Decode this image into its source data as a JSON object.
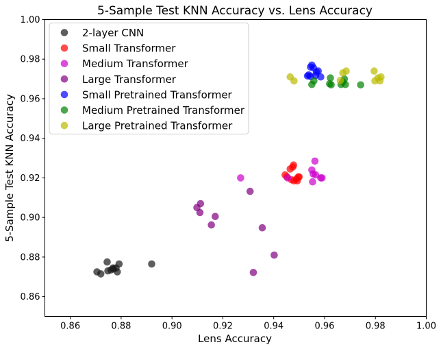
{
  "chart_data": {
    "type": "scatter",
    "title": "5-Sample Test KNN Accuracy vs. Lens Accuracy",
    "xlabel": "Lens Accuracy",
    "ylabel": "5-Sample Test KNN Accuracy",
    "xlim": [
      0.85,
      1.0
    ],
    "ylim": [
      0.85,
      1.0
    ],
    "xticks": [
      "0.86",
      "0.88",
      "0.90",
      "0.92",
      "0.94",
      "0.96",
      "0.98",
      "1.00"
    ],
    "yticks": [
      "0.86",
      "0.88",
      "0.90",
      "0.92",
      "0.94",
      "0.96",
      "0.98",
      "1.00"
    ],
    "grid": false,
    "legend_position": "top-left",
    "series": [
      {
        "name": "2-layer CNN",
        "color": "#1a1a1a",
        "points": [
          [
            0.8705,
            0.8725
          ],
          [
            0.872,
            0.8715
          ],
          [
            0.8745,
            0.8775
          ],
          [
            0.8748,
            0.873
          ],
          [
            0.876,
            0.8735
          ],
          [
            0.8768,
            0.8745
          ],
          [
            0.877,
            0.874
          ],
          [
            0.878,
            0.8745
          ],
          [
            0.8785,
            0.8725
          ],
          [
            0.8792,
            0.8765
          ],
          [
            0.892,
            0.8765
          ]
        ]
      },
      {
        "name": "Small Transformer",
        "color": "#ff0000",
        "points": [
          [
            0.9445,
            0.9215
          ],
          [
            0.9452,
            0.9205
          ],
          [
            0.9465,
            0.9245
          ],
          [
            0.947,
            0.919
          ],
          [
            0.9475,
            0.9255
          ],
          [
            0.9478,
            0.9265
          ],
          [
            0.948,
            0.9185
          ],
          [
            0.949,
            0.9195
          ],
          [
            0.9493,
            0.9185
          ],
          [
            0.9497,
            0.9205
          ],
          [
            0.95,
            0.9205
          ]
        ]
      },
      {
        "name": "Medium Transformer",
        "color": "#cc00cc",
        "points": [
          [
            0.927,
            0.92
          ],
          [
            0.9455,
            0.92
          ],
          [
            0.955,
            0.924
          ],
          [
            0.9553,
            0.918
          ],
          [
            0.9555,
            0.922
          ],
          [
            0.9562,
            0.9285
          ],
          [
            0.9565,
            0.9215
          ],
          [
            0.9585,
            0.92
          ],
          [
            0.959,
            0.92
          ]
        ]
      },
      {
        "name": "Large Transformer",
        "color": "#800080",
        "points": [
          [
            0.9098,
            0.905
          ],
          [
            0.911,
            0.9025
          ],
          [
            0.9112,
            0.907
          ],
          [
            0.9155,
            0.8962
          ],
          [
            0.917,
            0.9005
          ],
          [
            0.9307,
            0.9132
          ],
          [
            0.932,
            0.8722
          ],
          [
            0.9355,
            0.8948
          ],
          [
            0.9402,
            0.881
          ]
        ]
      },
      {
        "name": "Small Pretrained Transformer",
        "color": "#0000ff",
        "points": [
          [
            0.9533,
            0.9715
          ],
          [
            0.9538,
            0.972
          ],
          [
            0.9545,
            0.976
          ],
          [
            0.955,
            0.977
          ],
          [
            0.9557,
            0.9755
          ],
          [
            0.9568,
            0.9735
          ],
          [
            0.9575,
            0.974
          ],
          [
            0.9585,
            0.971
          ],
          [
            0.9545,
            0.9712
          ],
          [
            0.9565,
            0.9718
          ]
        ]
      },
      {
        "name": "Medium Pretrained Transformer",
        "color": "#008000",
        "points": [
          [
            0.955,
            0.9672
          ],
          [
            0.9558,
            0.969
          ],
          [
            0.962,
            0.9675
          ],
          [
            0.9623,
            0.9705
          ],
          [
            0.9626,
            0.967
          ],
          [
            0.9665,
            0.9672
          ],
          [
            0.9672,
            0.9685
          ],
          [
            0.9678,
            0.97
          ],
          [
            0.9682,
            0.9672
          ],
          [
            0.9742,
            0.967
          ]
        ]
      },
      {
        "name": "Large Pretrained Transformer",
        "color": "#bbbb00",
        "points": [
          [
            0.9465,
            0.971
          ],
          [
            0.948,
            0.969
          ],
          [
            0.9662,
            0.9692
          ],
          [
            0.9672,
            0.973
          ],
          [
            0.9685,
            0.974
          ],
          [
            0.9795,
            0.974
          ],
          [
            0.9798,
            0.969
          ],
          [
            0.981,
            0.9705
          ],
          [
            0.9818,
            0.969
          ],
          [
            0.9822,
            0.971
          ]
        ]
      }
    ]
  }
}
